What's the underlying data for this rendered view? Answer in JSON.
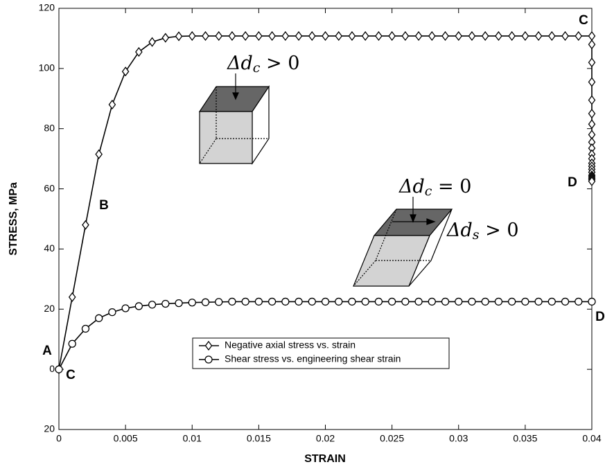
{
  "chart_data": {
    "type": "line",
    "xlabel": "STRAIN",
    "ylabel": "STRESS, MPa",
    "xlim": [
      0,
      0.04
    ],
    "ylim": [
      -20,
      120
    ],
    "xticks": [
      0,
      0.005,
      0.01,
      0.015,
      0.02,
      0.025,
      0.03,
      0.035,
      0.04
    ],
    "yticks": [
      {
        "value": -20,
        "label": "20"
      },
      0,
      20,
      40,
      60,
      80,
      100,
      120
    ],
    "legend": "lower center",
    "series": [
      {
        "name": "Negative axial stress vs. strain",
        "color": "#000000",
        "marker": "diamond",
        "x": [
          0,
          0.001,
          0.002,
          0.003,
          0.004,
          0.005,
          0.006,
          0.007,
          0.008,
          0.009,
          0.01,
          0.011,
          0.012,
          0.013,
          0.014,
          0.015,
          0.016,
          0.017,
          0.018,
          0.019,
          0.02,
          0.021,
          0.022,
          0.023,
          0.024,
          0.025,
          0.026,
          0.027,
          0.028,
          0.029,
          0.03,
          0.031,
          0.032,
          0.033,
          0.034,
          0.035,
          0.036,
          0.037,
          0.038,
          0.039,
          0.04,
          0.04,
          0.04,
          0.04,
          0.04,
          0.04,
          0.04,
          0.04,
          0.04,
          0.04,
          0.04,
          0.04,
          0.04,
          0.04,
          0.04,
          0.04,
          0.04,
          0.04,
          0.04,
          0.04,
          0.04
        ],
        "values": [
          0,
          24,
          48,
          71.5,
          88,
          99,
          105.5,
          108.8,
          110.2,
          110.7,
          110.8,
          110.8,
          110.8,
          110.8,
          110.8,
          110.8,
          110.8,
          110.8,
          110.8,
          110.8,
          110.8,
          110.8,
          110.8,
          110.8,
          110.8,
          110.8,
          110.8,
          110.8,
          110.8,
          110.8,
          110.8,
          110.8,
          110.8,
          110.8,
          110.8,
          110.8,
          110.8,
          110.8,
          110.8,
          110.8,
          110.8,
          108,
          102,
          95.5,
          89.5,
          85,
          81.5,
          78,
          75.5,
          73.5,
          71.5,
          70,
          68.5,
          67.5,
          66.5,
          65.5,
          64.5,
          64,
          63.5,
          63,
          62.5
        ]
      },
      {
        "name": "Shear stress vs. engineering shear strain",
        "color": "#000000",
        "marker": "circle",
        "x": [
          0,
          0.001,
          0.002,
          0.003,
          0.004,
          0.005,
          0.006,
          0.007,
          0.008,
          0.009,
          0.01,
          0.011,
          0.012,
          0.013,
          0.014,
          0.015,
          0.016,
          0.017,
          0.018,
          0.019,
          0.02,
          0.021,
          0.022,
          0.023,
          0.024,
          0.025,
          0.026,
          0.027,
          0.028,
          0.029,
          0.03,
          0.031,
          0.032,
          0.033,
          0.034,
          0.035,
          0.036,
          0.037,
          0.038,
          0.039,
          0.04
        ],
        "values": [
          0,
          8.5,
          13.5,
          17,
          19,
          20.3,
          21,
          21.5,
          21.8,
          22,
          22.2,
          22.3,
          22.4,
          22.5,
          22.5,
          22.5,
          22.5,
          22.5,
          22.5,
          22.5,
          22.5,
          22.5,
          22.5,
          22.5,
          22.5,
          22.5,
          22.5,
          22.5,
          22.5,
          22.5,
          22.5,
          22.5,
          22.5,
          22.5,
          22.5,
          22.5,
          22.5,
          22.5,
          22.5,
          22.5,
          22.5
        ]
      }
    ],
    "annotations": [
      "A",
      "B",
      "C",
      "C",
      "D",
      "D"
    ],
    "math_annotations": [
      {
        "text": "Δd",
        "subscript": "c",
        "suffix": " > 0"
      },
      {
        "text": "Δd",
        "subscript": "c",
        "suffix": " = 0"
      },
      {
        "text": "Δd",
        "subscript": "s",
        "suffix": " > 0"
      }
    ]
  }
}
